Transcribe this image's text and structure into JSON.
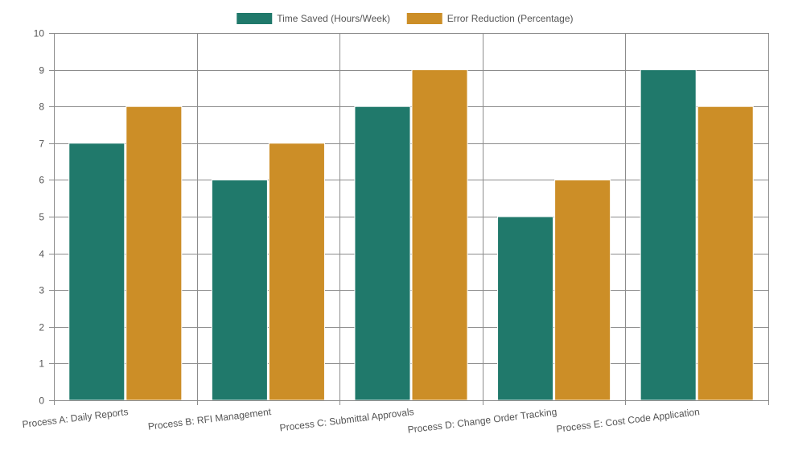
{
  "chart_data": {
    "type": "bar",
    "title": "",
    "xlabel": "",
    "ylabel": "",
    "categories": [
      "Process A: Daily Reports",
      "Process B: RFI Management",
      "Process C: Submittal Approvals",
      "Process D: Change Order Tracking",
      "Process E: Cost Code Application"
    ],
    "series": [
      {
        "name": "Time Saved (Hours/Week)",
        "color": "#20796b",
        "values": [
          7,
          6,
          8,
          5,
          9
        ]
      },
      {
        "name": "Error Reduction (Percentage)",
        "color": "#cc8e27",
        "values": [
          8,
          7,
          9,
          6,
          8
        ]
      }
    ],
    "ylim": [
      0,
      10
    ],
    "yticks": [
      0,
      1,
      2,
      3,
      4,
      5,
      6,
      7,
      8,
      9,
      10
    ],
    "grid": true,
    "legend_position": "top-center"
  }
}
